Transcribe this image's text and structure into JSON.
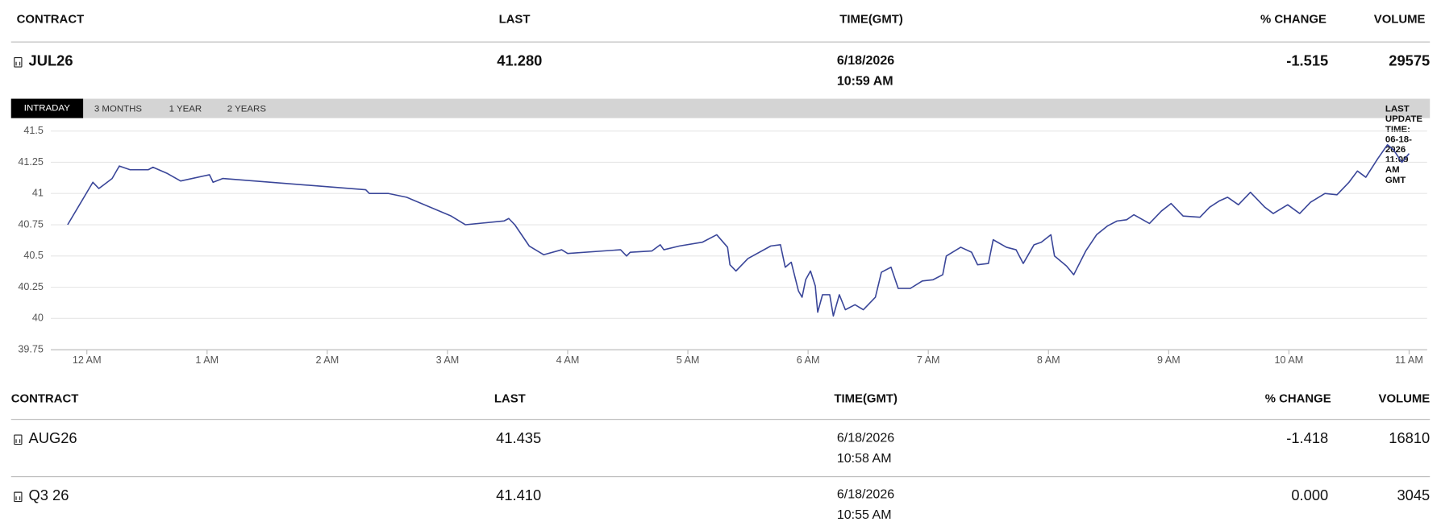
{
  "header": {
    "columns": [
      "CONTRACT",
      "LAST",
      "TIME(GMT)",
      "% CHANGE",
      "VOLUME"
    ]
  },
  "main_row": {
    "contract": "JUL26",
    "last": "41.280",
    "date": "6/18/2026",
    "time": "10:59 AM",
    "change": "-1.515",
    "volume": "29575"
  },
  "tabs": [
    "INTRADAY",
    "3 MONTHS",
    "1 YEAR",
    "2 YEARS"
  ],
  "last_update": "LAST UPDATE TIME: 06-18-2026 11:09 AM GMT",
  "chart_data": {
    "type": "line",
    "color": "#3a4699",
    "grid": true,
    "xlim": [
      -0.3,
      11.15
    ],
    "xticks": [
      {
        "value": 0,
        "label": "12 AM"
      },
      {
        "value": 1,
        "label": "1 AM"
      },
      {
        "value": 2,
        "label": "2 AM"
      },
      {
        "value": 3,
        "label": "3 AM"
      },
      {
        "value": 4,
        "label": "4 AM"
      },
      {
        "value": 5,
        "label": "5 AM"
      },
      {
        "value": 6,
        "label": "6 AM"
      },
      {
        "value": 7,
        "label": "7 AM"
      },
      {
        "value": 8,
        "label": "8 AM"
      },
      {
        "value": 9,
        "label": "9 AM"
      },
      {
        "value": 10,
        "label": "10 AM"
      },
      {
        "value": 11,
        "label": "11 AM"
      }
    ],
    "ylim": [
      39.75,
      41.5
    ],
    "yticks": [
      39.75,
      40,
      40.25,
      40.5,
      40.75,
      41,
      41.25,
      41.5
    ],
    "x": [
      -0.16,
      0.05,
      0.1,
      0.21,
      0.27,
      0.36,
      0.51,
      0.55,
      0.67,
      0.78,
      1.02,
      1.05,
      1.13,
      2.32,
      2.35,
      2.51,
      2.66,
      3.03,
      3.15,
      3.47,
      3.51,
      3.56,
      3.68,
      3.8,
      3.95,
      4.0,
      4.44,
      4.49,
      4.52,
      4.7,
      4.77,
      4.8,
      4.93,
      5.12,
      5.24,
      5.33,
      5.35,
      5.4,
      5.5,
      5.69,
      5.77,
      5.81,
      5.86,
      5.92,
      5.95,
      5.98,
      6.02,
      6.06,
      6.08,
      6.12,
      6.18,
      6.21,
      6.26,
      6.31,
      6.39,
      6.46,
      6.56,
      6.61,
      6.69,
      6.75,
      6.85,
      6.95,
      7.04,
      7.12,
      7.15,
      7.27,
      7.36,
      7.41,
      7.5,
      7.54,
      7.65,
      7.73,
      7.79,
      7.88,
      7.94,
      8.02,
      8.05,
      8.15,
      8.21,
      8.31,
      8.4,
      8.49,
      8.57,
      8.65,
      8.71,
      8.84,
      8.94,
      9.02,
      9.12,
      9.26,
      9.34,
      9.42,
      9.49,
      9.58,
      9.68,
      9.8,
      9.87,
      9.99,
      10.09,
      10.18,
      10.3,
      10.4,
      10.5,
      10.57,
      10.64,
      10.74,
      10.82,
      10.87,
      10.94,
      11.0
    ],
    "values": [
      40.75,
      41.09,
      41.04,
      41.12,
      41.22,
      41.19,
      41.19,
      41.21,
      41.16,
      41.1,
      41.15,
      41.09,
      41.12,
      41.03,
      41.0,
      41.0,
      40.97,
      40.82,
      40.75,
      40.78,
      40.8,
      40.75,
      40.58,
      40.51,
      40.55,
      40.52,
      40.55,
      40.5,
      40.53,
      40.54,
      40.59,
      40.55,
      40.58,
      40.61,
      40.67,
      40.57,
      40.43,
      40.38,
      40.48,
      40.58,
      40.59,
      40.41,
      40.45,
      40.22,
      40.17,
      40.31,
      40.38,
      40.26,
      40.05,
      40.19,
      40.19,
      40.02,
      40.19,
      40.07,
      40.11,
      40.07,
      40.17,
      40.37,
      40.41,
      40.24,
      40.24,
      40.3,
      40.31,
      40.35,
      40.5,
      40.57,
      40.53,
      40.43,
      40.44,
      40.63,
      40.57,
      40.55,
      40.44,
      40.59,
      40.61,
      40.67,
      40.5,
      40.42,
      40.35,
      40.54,
      40.67,
      40.74,
      40.78,
      40.79,
      40.83,
      40.76,
      40.86,
      40.92,
      40.82,
      40.81,
      40.89,
      40.94,
      40.97,
      40.91,
      41.01,
      40.89,
      40.84,
      40.91,
      40.84,
      40.93,
      41.0,
      40.99,
      41.09,
      41.18,
      41.13,
      41.28,
      41.39,
      41.35,
      41.25,
      41.32
    ]
  },
  "sub_table": {
    "columns": [
      "CONTRACT",
      "LAST",
      "TIME(GMT)",
      "% CHANGE",
      "VOLUME"
    ],
    "rows": [
      {
        "contract": "AUG26",
        "last": "41.435",
        "date": "6/18/2026",
        "time": "10:58 AM",
        "change": "-1.418",
        "volume": "16810"
      },
      {
        "contract": "Q3 26",
        "last": "41.410",
        "date": "6/18/2026",
        "time": "10:55 AM",
        "change": "0.000",
        "volume": "3045"
      }
    ]
  }
}
